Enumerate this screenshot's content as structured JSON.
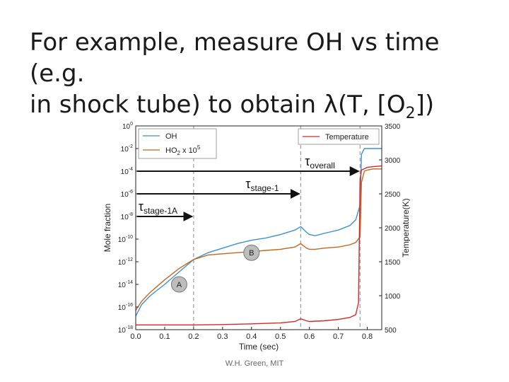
{
  "slide": {
    "title_line1": "For example, measure OH vs time (e.g.",
    "title_line2_prefix": "in shock tube) to obtain ",
    "title_lambda": "λ",
    "title_line2_mid": "(T, [O",
    "title_sub": "2",
    "title_line2_end": "])",
    "footer": "W.H. Green, MIT"
  },
  "chart_data": {
    "type": "line",
    "xlabel": "Time (sec)",
    "ylabel_left": "Mole fraction",
    "ylabel_right": "Temperature(K)",
    "xlim": [
      0.0,
      0.85
    ],
    "x_ticks": [
      "0.0",
      "0.1",
      "0.2",
      "0.3",
      "0.4",
      "0.5",
      "0.6",
      "0.7",
      "0.8"
    ],
    "y_left_log_range": [
      -18,
      0
    ],
    "y_left_ticks_exp": [
      "0",
      "-2",
      "-4",
      "-6",
      "-8",
      "-10",
      "-12",
      "-14",
      "-16",
      "-18"
    ],
    "y_right_range": [
      500,
      3500
    ],
    "y_right_ticks": [
      "3500",
      "3000",
      "2500",
      "2000",
      "1500",
      "1000",
      "500"
    ],
    "legend_left": {
      "oh_label": "OH",
      "ho2_label_base": "HO",
      "ho2_label_sub": "2",
      "ho2_label_suffix": " x 10",
      "ho2_label_sup": "5"
    },
    "legend_right": {
      "temp_label": "Temperature"
    },
    "colors": {
      "oh": "#3d8fd1",
      "ho2": "#c8651b",
      "temperature": "#d62728"
    },
    "series": [
      {
        "name": "OH",
        "axis": "left",
        "x": [
          0.0,
          0.02,
          0.05,
          0.1,
          0.15,
          0.2,
          0.25,
          0.3,
          0.35,
          0.4,
          0.45,
          0.5,
          0.55,
          0.57,
          0.59,
          0.6,
          0.62,
          0.65,
          0.7,
          0.74,
          0.76,
          0.775,
          0.78,
          0.79,
          0.8,
          0.82,
          0.85
        ],
        "log10_y": [
          -16.8,
          -15.8,
          -15.0,
          -14.0,
          -12.9,
          -11.8,
          -11.2,
          -10.8,
          -10.4,
          -10.1,
          -9.9,
          -9.6,
          -9.2,
          -8.9,
          -9.4,
          -9.6,
          -9.7,
          -9.5,
          -9.2,
          -8.8,
          -8.3,
          -7.0,
          -2.5,
          -2.0,
          -2.0,
          -2.0,
          -2.0
        ]
      },
      {
        "name": "HO₂ x 10⁵",
        "axis": "left",
        "x": [
          0.0,
          0.02,
          0.05,
          0.1,
          0.15,
          0.2,
          0.25,
          0.3,
          0.35,
          0.4,
          0.45,
          0.5,
          0.55,
          0.57,
          0.59,
          0.6,
          0.62,
          0.65,
          0.7,
          0.74,
          0.76,
          0.775,
          0.78,
          0.79,
          0.8,
          0.82,
          0.85
        ],
        "log10_y": [
          -16.3,
          -15.5,
          -14.7,
          -13.6,
          -12.6,
          -11.8,
          -11.4,
          -11.3,
          -11.2,
          -11.1,
          -11.0,
          -10.9,
          -10.7,
          -10.4,
          -10.8,
          -10.9,
          -10.9,
          -10.8,
          -10.7,
          -10.5,
          -10.3,
          -9.8,
          -5.0,
          -4.0,
          -3.9,
          -3.8,
          -3.8
        ]
      },
      {
        "name": "Temperature",
        "axis": "right",
        "x": [
          0.0,
          0.1,
          0.2,
          0.3,
          0.4,
          0.5,
          0.55,
          0.57,
          0.59,
          0.6,
          0.65,
          0.7,
          0.74,
          0.76,
          0.77,
          0.775,
          0.78,
          0.79,
          0.8,
          0.82,
          0.85
        ],
        "y": [
          570,
          570,
          570,
          575,
          585,
          600,
          620,
          660,
          630,
          620,
          630,
          650,
          680,
          720,
          900,
          2700,
          2850,
          2870,
          2890,
          2900,
          2910
        ]
      }
    ],
    "vlines_x": [
      0.2,
      0.57,
      0.775
    ],
    "arrows": [
      {
        "label_base": "τ",
        "label_sub": "stage-1A",
        "x_end": 0.2,
        "y_exp": -8
      },
      {
        "label_base": "τ",
        "label_sub": "stage-1",
        "x_end": 0.57,
        "y_exp": -6
      },
      {
        "label_base": "τ",
        "label_sub": "overall",
        "x_end": 0.775,
        "y_exp": -4
      }
    ],
    "markers": [
      {
        "label": "A",
        "x": 0.15,
        "y_exp": -14
      },
      {
        "label": "B",
        "x": 0.4,
        "y_exp": -11.2
      }
    ]
  }
}
